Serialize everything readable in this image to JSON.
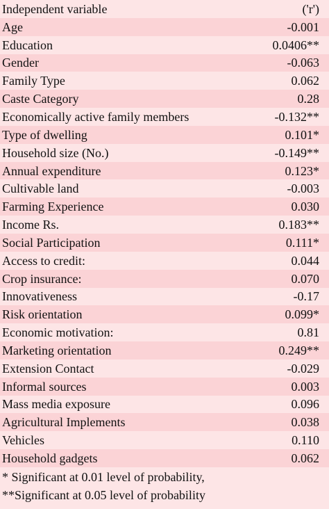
{
  "table": {
    "header": {
      "variable": "Independent variable",
      "value": "('r')"
    },
    "rows": [
      {
        "variable": "Age",
        "value": "-0.001"
      },
      {
        "variable": "Education",
        "value": "0.0406**"
      },
      {
        "variable": "Gender",
        "value": "-0.063"
      },
      {
        "variable": "Family Type",
        "value": "0.062"
      },
      {
        "variable": "Caste Category",
        "value": "0.28"
      },
      {
        "variable": "Economically active family members",
        "value": "-0.132**"
      },
      {
        "variable": "Type of dwelling",
        "value": "0.101*"
      },
      {
        "variable": "Household size (No.)",
        "value": "-0.149**"
      },
      {
        "variable": "Annual expenditure",
        "value": "0.123*"
      },
      {
        "variable": "Cultivable land",
        "value": "-0.003"
      },
      {
        "variable": "Farming Experience",
        "value": "0.030"
      },
      {
        "variable": "Income Rs.",
        "value": "0.183**"
      },
      {
        "variable": "Social Participation",
        "value": "0.111*"
      },
      {
        "variable": "Access to credit:",
        "value": "0.044"
      },
      {
        "variable": "Crop insurance:",
        "value": "0.070"
      },
      {
        "variable": "Innovativeness",
        "value": "-0.17"
      },
      {
        "variable": "Risk orientation",
        "value": "0.099*"
      },
      {
        "variable": "Economic motivation:",
        "value": "0.81"
      },
      {
        "variable": "Marketing orientation",
        "value": "0.249**"
      },
      {
        "variable": "Extension Contact",
        "value": "-0.029"
      },
      {
        "variable": "Informal sources",
        "value": "0.003"
      },
      {
        "variable": "Mass media exposure",
        "value": "0.096"
      },
      {
        "variable": "Agricultural Implements",
        "value": "0.038"
      },
      {
        "variable": "Vehicles",
        "value": "0.110"
      },
      {
        "variable": "Household gadgets",
        "value": "0.062"
      }
    ]
  },
  "notes": [
    "* Significant at 0.01 level of probability,",
    "**Significant at 0.05 level of probability"
  ]
}
